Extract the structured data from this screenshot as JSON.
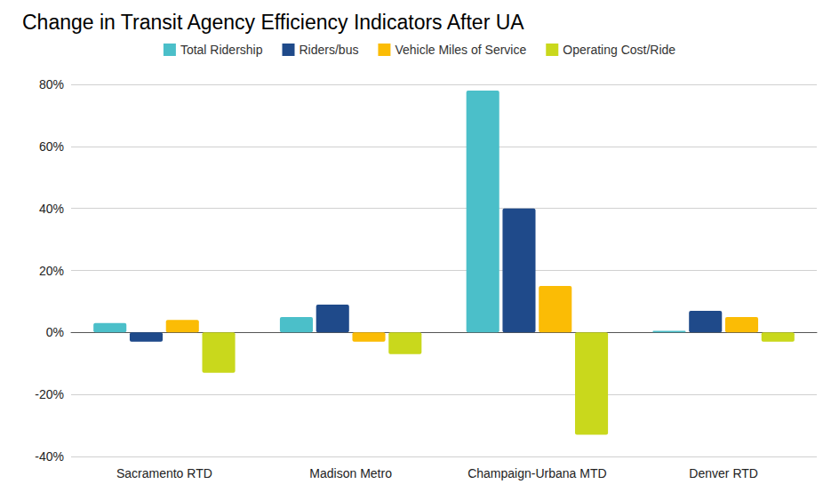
{
  "chart_data": {
    "type": "bar",
    "title": "Change in Transit Agency Efficiency Indicators After UA",
    "categories": [
      "Sacramento RTD",
      "Madison Metro",
      "Champaign-Urbana MTD",
      "Denver RTD"
    ],
    "series": [
      {
        "name": "Total Ridership",
        "color": "#4bbfc9",
        "values": [
          3,
          5,
          78,
          0.5
        ]
      },
      {
        "name": "Riders/bus",
        "color": "#1f4a8a",
        "values": [
          -3,
          9,
          40,
          7
        ]
      },
      {
        "name": "Vehicle Miles of Service",
        "color": "#fbbc05",
        "values": [
          4,
          -3,
          15,
          5
        ]
      },
      {
        "name": "Operating Cost/Ride",
        "color": "#c9d81c",
        "values": [
          -13,
          -7,
          -33,
          -3
        ]
      }
    ],
    "ylim": [
      -40,
      80
    ],
    "yticks": [
      {
        "value": -40,
        "label": "-40%"
      },
      {
        "value": -20,
        "label": "-20%"
      },
      {
        "value": 0,
        "label": "0%"
      },
      {
        "value": 20,
        "label": "20%"
      },
      {
        "value": 40,
        "label": "40%"
      },
      {
        "value": 60,
        "label": "60%"
      },
      {
        "value": 80,
        "label": "80%"
      }
    ],
    "grid": true,
    "legend": "top"
  }
}
